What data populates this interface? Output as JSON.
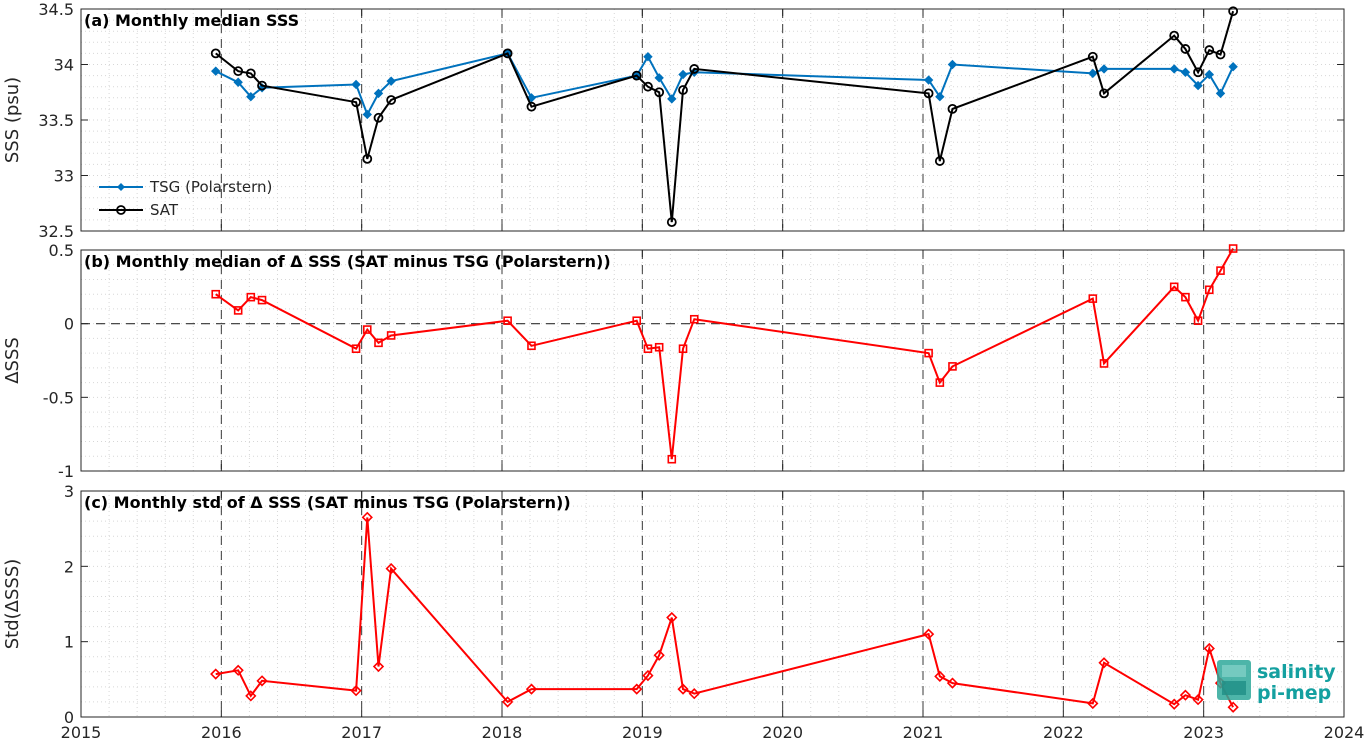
{
  "chart_data": [
    {
      "type": "line",
      "title": "(a) Monthly median SSS",
      "ylabel": "SSS (psu)",
      "xlim": [
        2015,
        2024
      ],
      "ylim": [
        32.5,
        34.5
      ],
      "yticks": [
        32.5,
        33,
        33.5,
        34,
        34.5
      ],
      "ytick_labels": [
        "32.5",
        "33",
        "33.5",
        "34",
        "34.5"
      ],
      "legend_position": "lower-left",
      "grid": "minor-dotted",
      "series": [
        {
          "name": "TSG (Polarstern)",
          "color": "#0072bd",
          "marker": "diamond-filled",
          "x": [
            2015.96,
            2016.12,
            2016.21,
            2016.29,
            2016.96,
            2017.04,
            2017.12,
            2017.21,
            2018.04,
            2018.21,
            2018.96,
            2019.04,
            2019.12,
            2019.21,
            2019.29,
            2019.37,
            2021.04,
            2021.12,
            2021.21,
            2022.21,
            2022.29,
            2022.79,
            2022.87,
            2022.96,
            2023.04,
            2023.12,
            2023.21
          ],
          "y": [
            33.94,
            33.84,
            33.71,
            33.79,
            33.82,
            33.55,
            33.74,
            33.85,
            34.1,
            33.7,
            33.9,
            34.07,
            33.88,
            33.69,
            33.91,
            33.93,
            33.86,
            33.71,
            34.0,
            33.92,
            33.96,
            33.96,
            33.93,
            33.81,
            33.91,
            33.74,
            33.98
          ]
        },
        {
          "name": "SAT",
          "color": "#000000",
          "marker": "circle-open",
          "x": [
            2015.96,
            2016.12,
            2016.21,
            2016.29,
            2016.96,
            2017.04,
            2017.12,
            2017.21,
            2018.04,
            2018.21,
            2018.96,
            2019.04,
            2019.12,
            2019.21,
            2019.29,
            2019.37,
            2021.04,
            2021.12,
            2021.21,
            2022.21,
            2022.29,
            2022.79,
            2022.87,
            2022.96,
            2023.04,
            2023.12,
            2023.21
          ],
          "y": [
            34.1,
            33.94,
            33.92,
            33.81,
            33.66,
            33.15,
            33.52,
            33.68,
            34.1,
            33.62,
            33.9,
            33.8,
            33.75,
            32.58,
            33.77,
            33.96,
            33.74,
            33.13,
            33.6,
            34.07,
            33.74,
            34.26,
            34.14,
            33.93,
            34.13,
            34.09,
            34.48
          ]
        }
      ]
    },
    {
      "type": "line",
      "title": "(b) Monthly median of Δ SSS (SAT minus TSG (Polarstern))",
      "ylabel": "ΔSSS",
      "xlim": [
        2015,
        2024
      ],
      "ylim": [
        -1,
        0.5
      ],
      "yticks": [
        -1,
        -0.5,
        0,
        0.5
      ],
      "ytick_labels": [
        "-1",
        "-0.5",
        "0",
        "0.5"
      ],
      "zero_line": true,
      "grid": "minor-dotted",
      "series": [
        {
          "color": "#ff0000",
          "marker": "square-open",
          "x": [
            2015.96,
            2016.12,
            2016.21,
            2016.29,
            2016.96,
            2017.04,
            2017.12,
            2017.21,
            2018.04,
            2018.21,
            2018.96,
            2019.04,
            2019.12,
            2019.21,
            2019.29,
            2019.37,
            2021.04,
            2021.12,
            2021.21,
            2022.21,
            2022.29,
            2022.79,
            2022.87,
            2022.96,
            2023.04,
            2023.12,
            2023.21
          ],
          "y": [
            0.2,
            0.09,
            0.18,
            0.16,
            -0.17,
            -0.04,
            -0.13,
            -0.08,
            0.02,
            -0.15,
            0.02,
            -0.17,
            -0.16,
            -0.92,
            -0.17,
            0.03,
            -0.2,
            -0.4,
            -0.29,
            0.17,
            -0.27,
            0.25,
            0.18,
            0.02,
            0.23,
            0.36,
            0.51
          ]
        }
      ]
    },
    {
      "type": "line",
      "title": "(c) Monthly std of Δ SSS (SAT minus TSG (Polarstern))",
      "ylabel": "Std(ΔSSS)",
      "xlabel": "",
      "xlim": [
        2015,
        2024
      ],
      "ylim": [
        0,
        3
      ],
      "yticks": [
        0,
        1,
        2,
        3
      ],
      "ytick_labels": [
        "0",
        "1",
        "2",
        "3"
      ],
      "xticks": [
        2015,
        2016,
        2017,
        2018,
        2019,
        2020,
        2021,
        2022,
        2023,
        2024
      ],
      "xtick_labels": [
        "2015",
        "2016",
        "2017",
        "2018",
        "2019",
        "2020",
        "2021",
        "2022",
        "2023",
        "2024"
      ],
      "grid": "minor-dotted",
      "series": [
        {
          "color": "#ff0000",
          "marker": "diamond-open",
          "x": [
            2015.96,
            2016.12,
            2016.21,
            2016.29,
            2016.96,
            2017.04,
            2017.12,
            2017.21,
            2018.04,
            2018.21,
            2018.96,
            2019.04,
            2019.12,
            2019.21,
            2019.29,
            2019.37,
            2021.04,
            2021.12,
            2021.21,
            2022.21,
            2022.29,
            2022.79,
            2022.87,
            2022.96,
            2023.04,
            2023.12,
            2023.21
          ],
          "y": [
            0.57,
            0.62,
            0.28,
            0.48,
            0.35,
            2.65,
            0.67,
            1.97,
            0.2,
            0.37,
            0.37,
            0.55,
            0.82,
            1.32,
            0.37,
            0.31,
            1.1,
            0.54,
            0.45,
            0.18,
            0.72,
            0.17,
            0.29,
            0.23,
            0.91,
            0.45,
            0.13
          ]
        }
      ]
    }
  ],
  "dashed_year_lines": [
    2016,
    2017,
    2018,
    2019,
    2020,
    2021,
    2022,
    2023
  ],
  "logo": {
    "line1": "salinity",
    "line2": "pi-mep",
    "color": "#14a0a0"
  }
}
